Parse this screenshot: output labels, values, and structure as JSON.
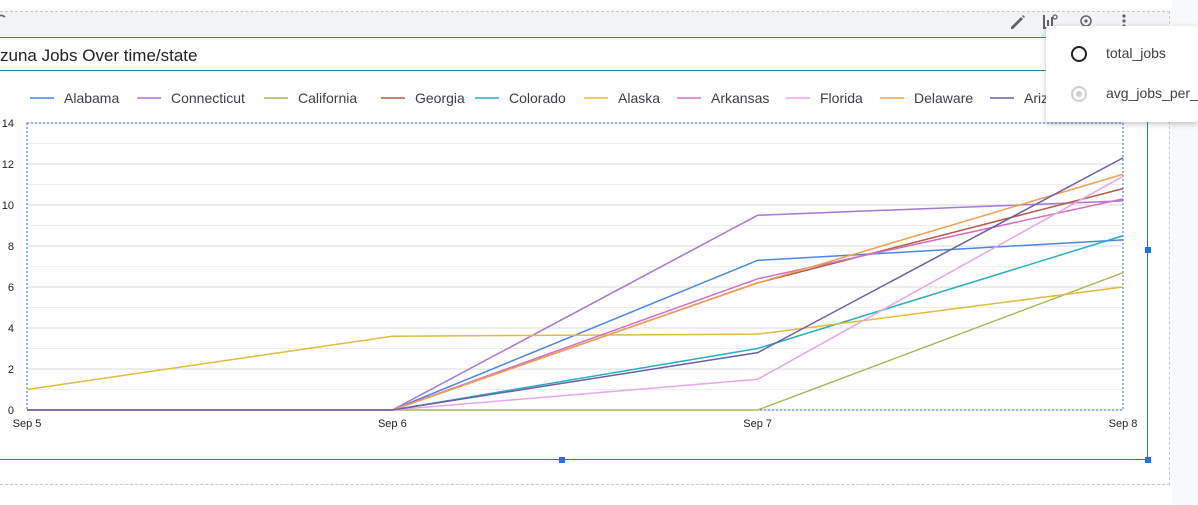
{
  "chart_title": "zuna Jobs Over time/state",
  "toolbar": {
    "edit_icon": "pencil-icon",
    "chart_type_icon": "chart-settings-icon",
    "explore_icon": "explore-icon",
    "more_icon": "more-vert-icon"
  },
  "metric_menu": {
    "options": [
      {
        "label": "total_jobs",
        "selected": false
      },
      {
        "label": "avg_jobs_per_d",
        "selected": true
      }
    ]
  },
  "colors": {
    "accent": "#1a73e8",
    "frame": "#1a8fa8"
  },
  "chart_data": {
    "type": "line",
    "title": "zuna Jobs Over time/state",
    "categories": [
      "Sep 5",
      "Sep 6",
      "Sep 7",
      "Sep 8"
    ],
    "ylim": [
      0,
      14
    ],
    "yticks": [
      "0",
      "2",
      "4",
      "6",
      "8",
      "10",
      "12",
      "14"
    ],
    "grid": true,
    "legend_position": "top",
    "series": [
      {
        "name": "Alabama",
        "color": "#4a86e8",
        "values": [
          0,
          0,
          7.3,
          8.3
        ]
      },
      {
        "name": "Connecticut",
        "color": "#a677d6",
        "values": [
          0,
          0,
          9.5,
          10.2
        ]
      },
      {
        "name": "California",
        "color": "#a8b85a",
        "values": [
          0,
          0,
          0,
          6.7
        ]
      },
      {
        "name": "Georgia",
        "color": "#b55a43",
        "values": [
          0,
          0,
          6.2,
          10.8
        ]
      },
      {
        "name": "Colorado",
        "color": "#26b0bf",
        "values": [
          0,
          0,
          3.0,
          8.5
        ]
      },
      {
        "name": "Alaska",
        "color": "#e0bb3c",
        "values": [
          1.0,
          3.6,
          3.7,
          6.0
        ]
      },
      {
        "name": "Arkansas",
        "color": "#d36ec6",
        "values": [
          0,
          0,
          6.4,
          10.3
        ]
      },
      {
        "name": "Florida",
        "color": "#e7a6e8",
        "values": [
          0,
          0,
          1.5,
          11.4
        ]
      },
      {
        "name": "Delaware",
        "color": "#f0a150",
        "values": [
          0,
          0,
          6.2,
          11.5
        ]
      },
      {
        "name": "Ariz",
        "color": "#6a5fa8",
        "values": [
          0,
          0,
          2.8,
          12.3
        ]
      }
    ]
  }
}
